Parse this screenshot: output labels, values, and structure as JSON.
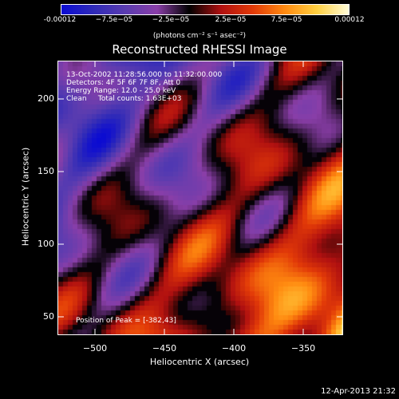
{
  "colorbar": {
    "ticks": [
      "-0.00012",
      "−7.5e−05",
      "−2.5e−05",
      "2.5e−05",
      "7.5e−05",
      "0.00012"
    ],
    "unit": "(photons cm⁻² s⁻¹ asec⁻²)"
  },
  "title": "Reconstructed RHESSI Image",
  "info": {
    "line1": "13-Oct-2002 11:28:56.000 to 11:32:00.000",
    "line2": "Detectors: 4F 5F 6F 7F 8F, Att 0",
    "line3": "Energy Range: 12.0 - 25.0 keV",
    "line4": "Clean     Total counts: 1.63E+03"
  },
  "peak": "Position of Peak = [-382,43]",
  "axes": {
    "xlabel": "Heliocentric X (arcsec)",
    "ylabel": "Heliocentric Y (arcsec)",
    "xticks": [
      "−500",
      "−450",
      "−400",
      "−350"
    ],
    "yticks": [
      "200",
      "150",
      "100",
      "50"
    ]
  },
  "timestamp": "12-Apr-2013 21:32",
  "colormap": [
    "#0b0bd2",
    "#2f2ab8",
    "#5a3cb0",
    "#8a3ea8",
    "#000000",
    "#b01010",
    "#e23a08",
    "#ff8a10",
    "#ffd040",
    "#fffcd8"
  ]
}
